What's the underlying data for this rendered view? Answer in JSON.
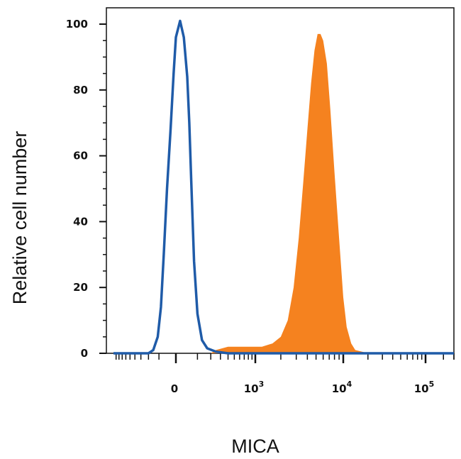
{
  "chart_data": {
    "type": "area",
    "xlabel": "MICA",
    "ylabel": "Relative cell number",
    "xscale": "biexponential",
    "ylim": [
      0,
      100
    ],
    "yticks": [
      "0",
      "20",
      "40",
      "60",
      "80",
      "100"
    ],
    "xticks": [
      {
        "base": "0",
        "exp": ""
      },
      {
        "base": "10",
        "exp": "3"
      },
      {
        "base": "10",
        "exp": "4"
      },
      {
        "base": "10",
        "exp": "5"
      }
    ],
    "grid": false,
    "series": [
      {
        "style": "filled",
        "color": "#f5821f",
        "x": [
          -1000,
          0,
          200,
          250,
          400,
          600,
          900,
          1200,
          1600,
          2000,
          2400,
          2800,
          3200,
          3600,
          4000,
          4400,
          4800,
          5200,
          5600,
          6000,
          6600,
          7200,
          8000,
          9000,
          10000,
          11000,
          12500,
          14000,
          17000,
          20000,
          30000,
          100000,
          300000
        ],
        "y": [
          0,
          0,
          0,
          1,
          2,
          2,
          2,
          2,
          3,
          5,
          10,
          20,
          35,
          52,
          68,
          82,
          92,
          97,
          97,
          95,
          88,
          74,
          55,
          35,
          17,
          8,
          3,
          1,
          0.5,
          0,
          0,
          0,
          0
        ]
      },
      {
        "style": "outline",
        "color": "#1f5ba8",
        "x": [
          -1000,
          -200,
          -150,
          -110,
          -85,
          -65,
          -45,
          -25,
          -10,
          0,
          15,
          30,
          45,
          55,
          65,
          80,
          100,
          130,
          170,
          250,
          400,
          1000,
          10000,
          100000,
          300000
        ],
        "y": [
          0,
          0,
          1,
          5,
          14,
          30,
          50,
          68,
          85,
          96,
          101,
          96,
          84,
          70,
          52,
          28,
          12,
          4,
          1.5,
          0.5,
          0,
          0,
          0,
          0,
          0
        ]
      }
    ]
  }
}
